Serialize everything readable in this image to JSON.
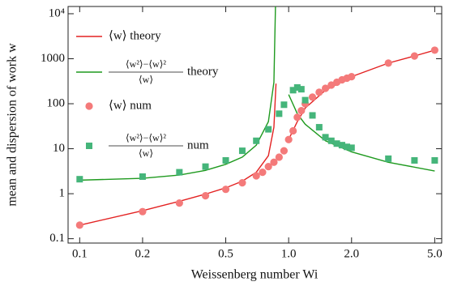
{
  "chart_data": {
    "type": "scatter",
    "x_label": "Weissenberg number Wi",
    "y_label": "mean and dispersion of work w",
    "xscale": "log",
    "yscale": "log",
    "xlim": [
      0.088,
      5.4
    ],
    "ylim": [
      0.08,
      14500
    ],
    "xticks": [
      0.1,
      0.2,
      0.5,
      {
        "value": 1,
        "label": "1.0"
      },
      {
        "value": 2,
        "label": "2.0"
      },
      {
        "value": 5,
        "label": "5.0"
      }
    ],
    "yticks": [
      0.1,
      1,
      10,
      100,
      1000,
      {
        "value": 10000,
        "label": "10⁴"
      }
    ],
    "series": [
      {
        "name": "⟨w⟩ theory",
        "style": "line",
        "color": "#e32222",
        "x": [
          0.1,
          0.2,
          0.3,
          0.4,
          0.5,
          0.6,
          0.7,
          0.8,
          0.85,
          0.87,
          0.95,
          1.0,
          1.1,
          1.2,
          1.5,
          2.0,
          3.0,
          4.0,
          5.0
        ],
        "values": [
          0.2,
          0.42,
          0.68,
          0.98,
          1.35,
          1.9,
          3.0,
          7,
          30,
          280,
          null,
          16,
          40,
          80,
          200,
          400,
          800,
          1150,
          1550
        ]
      },
      {
        "name": "theory",
        "name_fraction": [
          "⟨w²⟩−⟨w⟩²",
          "⟨w⟩"
        ],
        "style": "line",
        "color": "#1f9a1f",
        "x": [
          0.1,
          0.2,
          0.3,
          0.4,
          0.5,
          0.6,
          0.7,
          0.8,
          0.85,
          0.866,
          0.95,
          1.0,
          1.1,
          1.2,
          1.5,
          2.0,
          3.0,
          5.0
        ],
        "values": [
          2.0,
          2.2,
          2.6,
          3.3,
          4.5,
          6.5,
          12,
          40,
          300,
          20000,
          null,
          160,
          60,
          35,
          15,
          8.5,
          5,
          3.2
        ]
      },
      {
        "name": "⟨w⟩ num",
        "style": "marker",
        "marker": "circle",
        "color": "#f47a7a",
        "x": [
          0.1,
          0.2,
          0.3,
          0.4,
          0.5,
          0.6,
          0.7,
          0.75,
          0.8,
          0.85,
          0.9,
          0.95,
          1.0,
          1.05,
          1.1,
          1.15,
          1.2,
          1.3,
          1.4,
          1.5,
          1.6,
          1.7,
          1.8,
          1.9,
          2.0,
          3.0,
          4.0,
          5.0
        ],
        "values": [
          0.2,
          0.4,
          0.62,
          0.9,
          1.25,
          1.75,
          2.5,
          3.0,
          4.0,
          5.0,
          6.5,
          9,
          16,
          25,
          50,
          70,
          100,
          140,
          180,
          220,
          260,
          300,
          340,
          370,
          400,
          800,
          1150,
          1550
        ]
      },
      {
        "name": "num",
        "name_fraction": [
          "⟨w²⟩−⟨w⟩²",
          "⟨w⟩"
        ],
        "style": "marker",
        "marker": "square",
        "color": "#45b57a",
        "x": [
          0.1,
          0.2,
          0.3,
          0.4,
          0.5,
          0.6,
          0.7,
          0.8,
          0.9,
          0.95,
          1.05,
          1.1,
          1.15,
          1.2,
          1.3,
          1.4,
          1.5,
          1.6,
          1.7,
          1.8,
          1.9,
          2.0,
          3.0,
          4.0,
          5.0
        ],
        "values": [
          2.1,
          2.4,
          3,
          4,
          5.5,
          9,
          15,
          27,
          60,
          95,
          200,
          230,
          210,
          120,
          55,
          30,
          18,
          15,
          13,
          12,
          11,
          10.5,
          6,
          5.5,
          5.5
        ]
      }
    ]
  }
}
